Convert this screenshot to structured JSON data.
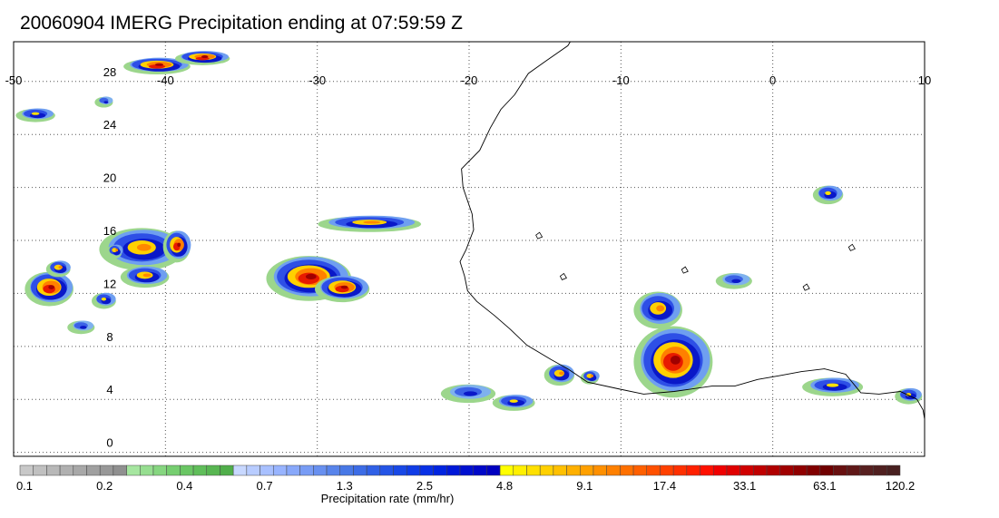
{
  "title": "20060904 IMERG Precipitation ending at 07:59:59 Z",
  "map": {
    "lon_range": [
      -50,
      10
    ],
    "lat_range": [
      -0.3,
      31
    ],
    "lon_ticks": [
      "-50",
      "-40",
      "-30",
      "-20",
      "-10",
      "0",
      "10"
    ],
    "lat_ticks": [
      "28",
      "24",
      "20",
      "16",
      "12",
      "8",
      "4",
      "0"
    ],
    "grid": "dotted"
  },
  "colorbar": {
    "title": "Precipitation rate (mm/hr)",
    "tick_labels": [
      "0.1",
      "0.2",
      "0.4",
      "0.7",
      "1.3",
      "2.5",
      "4.8",
      "9.1",
      "17.4",
      "33.1",
      "63.1",
      "120.2"
    ],
    "colors": [
      "#c8c8c8",
      "#c0c0c0",
      "#b8b8b8",
      "#b0b0b0",
      "#a8a8a8",
      "#a0a0a0",
      "#989898",
      "#909090",
      "#a6e6a0",
      "#96de90",
      "#86d680",
      "#76ce70",
      "#6ac664",
      "#60be5a",
      "#58b652",
      "#50ae4a",
      "#c8d8ff",
      "#b8ccff",
      "#a8c0ff",
      "#98b4ff",
      "#88a8fa",
      "#789cf5",
      "#6890f0",
      "#5884eb",
      "#4878e6",
      "#3c6ce6",
      "#3060e6",
      "#2454e6",
      "#1848e6",
      "#103ce6",
      "#0830e6",
      "#0024e0",
      "#0018d8",
      "#0010d0",
      "#0008c8",
      "#0000c0",
      "#ffff00",
      "#fff000",
      "#ffe000",
      "#ffd000",
      "#ffc000",
      "#ffb000",
      "#ffa000",
      "#ff9000",
      "#ff8000",
      "#ff7000",
      "#ff6000",
      "#ff5000",
      "#ff4000",
      "#ff3000",
      "#ff2000",
      "#ff1000",
      "#f00000",
      "#e00000",
      "#d00000",
      "#c00000",
      "#b00000",
      "#a00000",
      "#900000",
      "#800000",
      "#700000",
      "#681010",
      "#601818",
      "#582020",
      "#502020",
      "#482020"
    ]
  },
  "precip_clusters": [
    {
      "lon": -40.5,
      "lat": 29.2,
      "rx": 2.2,
      "ry": 0.6,
      "intensity": 4
    },
    {
      "lon": -37.5,
      "lat": 29.8,
      "rx": 1.8,
      "ry": 0.5,
      "intensity": 4
    },
    {
      "lon": -48.5,
      "lat": 25.5,
      "rx": 1.3,
      "ry": 0.5,
      "intensity": 2
    },
    {
      "lon": -44.0,
      "lat": 26.5,
      "rx": 0.6,
      "ry": 0.4,
      "intensity": 1
    },
    {
      "lon": -47.6,
      "lat": 12.4,
      "rx": 1.6,
      "ry": 1.3,
      "intensity": 4
    },
    {
      "lon": -47.0,
      "lat": 13.9,
      "rx": 0.8,
      "ry": 0.6,
      "intensity": 3
    },
    {
      "lon": -41.5,
      "lat": 15.4,
      "rx": 2.8,
      "ry": 1.6,
      "intensity": 3
    },
    {
      "lon": -39.2,
      "lat": 15.6,
      "rx": 0.9,
      "ry": 1.2,
      "intensity": 4
    },
    {
      "lon": -41.3,
      "lat": 13.3,
      "rx": 1.6,
      "ry": 0.8,
      "intensity": 3
    },
    {
      "lon": -43.3,
      "lat": 15.2,
      "rx": 0.5,
      "ry": 0.5,
      "intensity": 3
    },
    {
      "lon": -30.5,
      "lat": 13.2,
      "rx": 2.8,
      "ry": 1.7,
      "intensity": 4
    },
    {
      "lon": -28.3,
      "lat": 12.4,
      "rx": 1.8,
      "ry": 1.0,
      "intensity": 4
    },
    {
      "lon": -26.5,
      "lat": 17.3,
      "rx": 3.4,
      "ry": 0.6,
      "intensity": 3
    },
    {
      "lon": -7.5,
      "lat": 10.8,
      "rx": 1.6,
      "ry": 1.4,
      "intensity": 3
    },
    {
      "lon": -6.5,
      "lat": 6.9,
      "rx": 2.6,
      "ry": 2.7,
      "intensity": 4
    },
    {
      "lon": -14.0,
      "lat": 5.9,
      "rx": 1.0,
      "ry": 0.8,
      "intensity": 3
    },
    {
      "lon": -12.0,
      "lat": 5.7,
      "rx": 0.6,
      "ry": 0.5,
      "intensity": 3
    },
    {
      "lon": -17.0,
      "lat": 3.8,
      "rx": 1.4,
      "ry": 0.6,
      "intensity": 2
    },
    {
      "lon": 4.0,
      "lat": 5.0,
      "rx": 2.0,
      "ry": 0.7,
      "intensity": 2
    },
    {
      "lon": 9.0,
      "lat": 4.3,
      "rx": 0.9,
      "ry": 0.6,
      "intensity": 2
    },
    {
      "lon": 3.7,
      "lat": 19.5,
      "rx": 1.0,
      "ry": 0.7,
      "intensity": 2
    },
    {
      "lon": -2.5,
      "lat": 13.0,
      "rx": 1.2,
      "ry": 0.6,
      "intensity": 1
    },
    {
      "lon": -20.0,
      "lat": 4.5,
      "rx": 1.8,
      "ry": 0.7,
      "intensity": 1
    },
    {
      "lon": -45.5,
      "lat": 9.5,
      "rx": 0.9,
      "ry": 0.5,
      "intensity": 1
    },
    {
      "lon": -44.0,
      "lat": 11.5,
      "rx": 0.8,
      "ry": 0.6,
      "intensity": 2
    }
  ],
  "coastline_points": [
    [
      -12.8,
      32.0
    ],
    [
      -13.5,
      30.7
    ],
    [
      -15.0,
      29.5
    ],
    [
      -16.1,
      28.6
    ],
    [
      -17.0,
      27.0
    ],
    [
      -17.9,
      25.9
    ],
    [
      -18.6,
      24.5
    ],
    [
      -19.3,
      22.8
    ],
    [
      -20.5,
      21.4
    ],
    [
      -20.4,
      20.0
    ],
    [
      -19.8,
      18.0
    ],
    [
      -19.7,
      16.8
    ],
    [
      -20.2,
      15.3
    ],
    [
      -20.6,
      14.4
    ],
    [
      -20.3,
      13.3
    ],
    [
      -20.1,
      12.2
    ],
    [
      -19.5,
      11.4
    ],
    [
      -18.3,
      10.3
    ],
    [
      -17.3,
      9.3
    ],
    [
      -16.2,
      8.1
    ],
    [
      -14.6,
      7.0
    ],
    [
      -13.5,
      6.3
    ],
    [
      -12.2,
      5.3
    ],
    [
      -10.2,
      4.8
    ],
    [
      -8.5,
      4.4
    ],
    [
      -6.5,
      4.6
    ],
    [
      -4.0,
      5.0
    ],
    [
      -2.5,
      5.0
    ],
    [
      -1.0,
      5.5
    ],
    [
      0.5,
      5.8
    ],
    [
      1.9,
      6.1
    ],
    [
      3.4,
      6.3
    ],
    [
      4.8,
      5.9
    ],
    [
      5.8,
      4.5
    ],
    [
      7.0,
      4.4
    ],
    [
      8.4,
      4.6
    ],
    [
      9.5,
      4.0
    ],
    [
      9.9,
      3.2
    ],
    [
      10.0,
      2.5
    ]
  ]
}
